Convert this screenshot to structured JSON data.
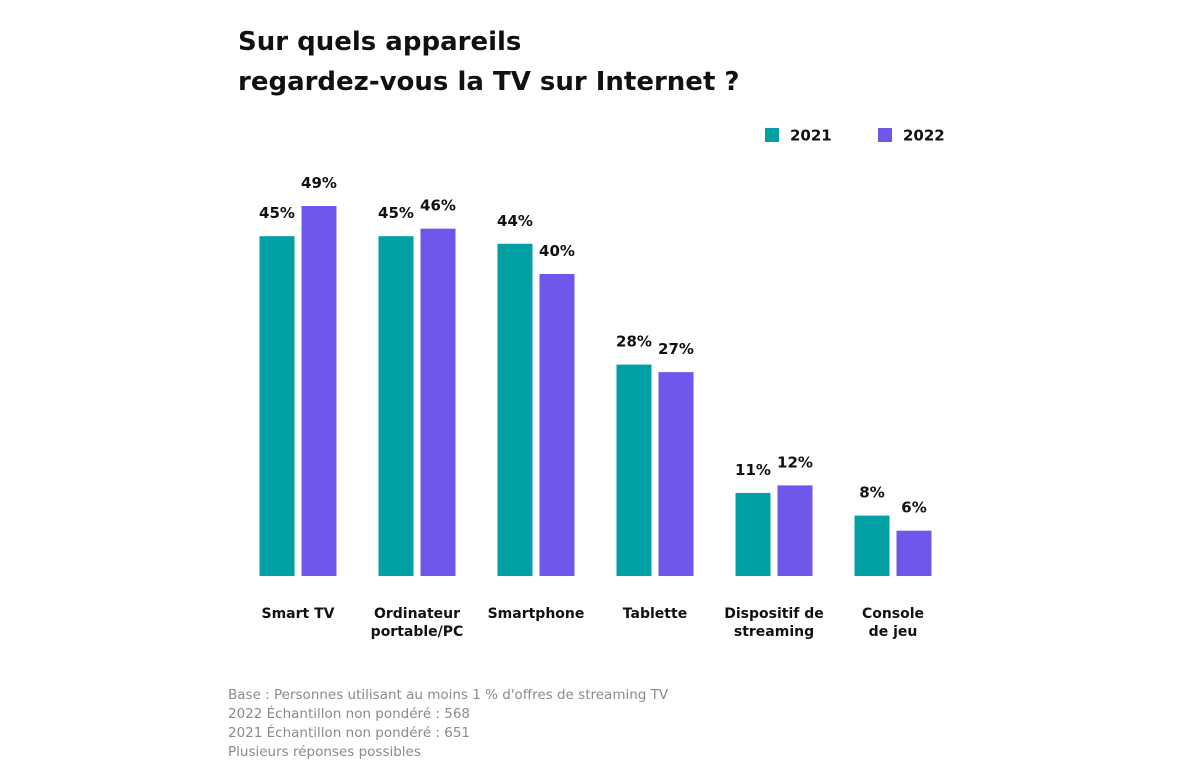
{
  "chart_data": {
    "type": "bar",
    "title": [
      "Sur quels appareils",
      "regardez-vous la TV sur Internet ?"
    ],
    "categories": [
      "Smart TV",
      "Ordinateur\nportable/PC",
      "Smartphone",
      "Tablette",
      "Dispositif de\nstreaming",
      "Console\nde jeu"
    ],
    "series": [
      {
        "name": "2021",
        "color": "#00a0a4",
        "values": [
          45,
          45,
          44,
          28,
          11,
          8
        ],
        "value_labels": [
          "45%",
          "45%",
          "44%",
          "28%",
          "11%",
          "8%"
        ]
      },
      {
        "name": "2022",
        "color": "#6f57ec",
        "values": [
          49,
          46,
          40,
          27,
          12,
          6
        ],
        "value_labels": [
          "49%",
          "46%",
          "40%",
          "27%",
          "12%",
          "6%"
        ]
      }
    ],
    "notes": [
      "Base : Personnes utilisant au moins 1 % d'offres de streaming TV",
      "2022 Échantillon non pondéré : 568",
      "2021 Échantillon non pondéré : 651",
      "Plusieurs réponses possibles"
    ]
  }
}
